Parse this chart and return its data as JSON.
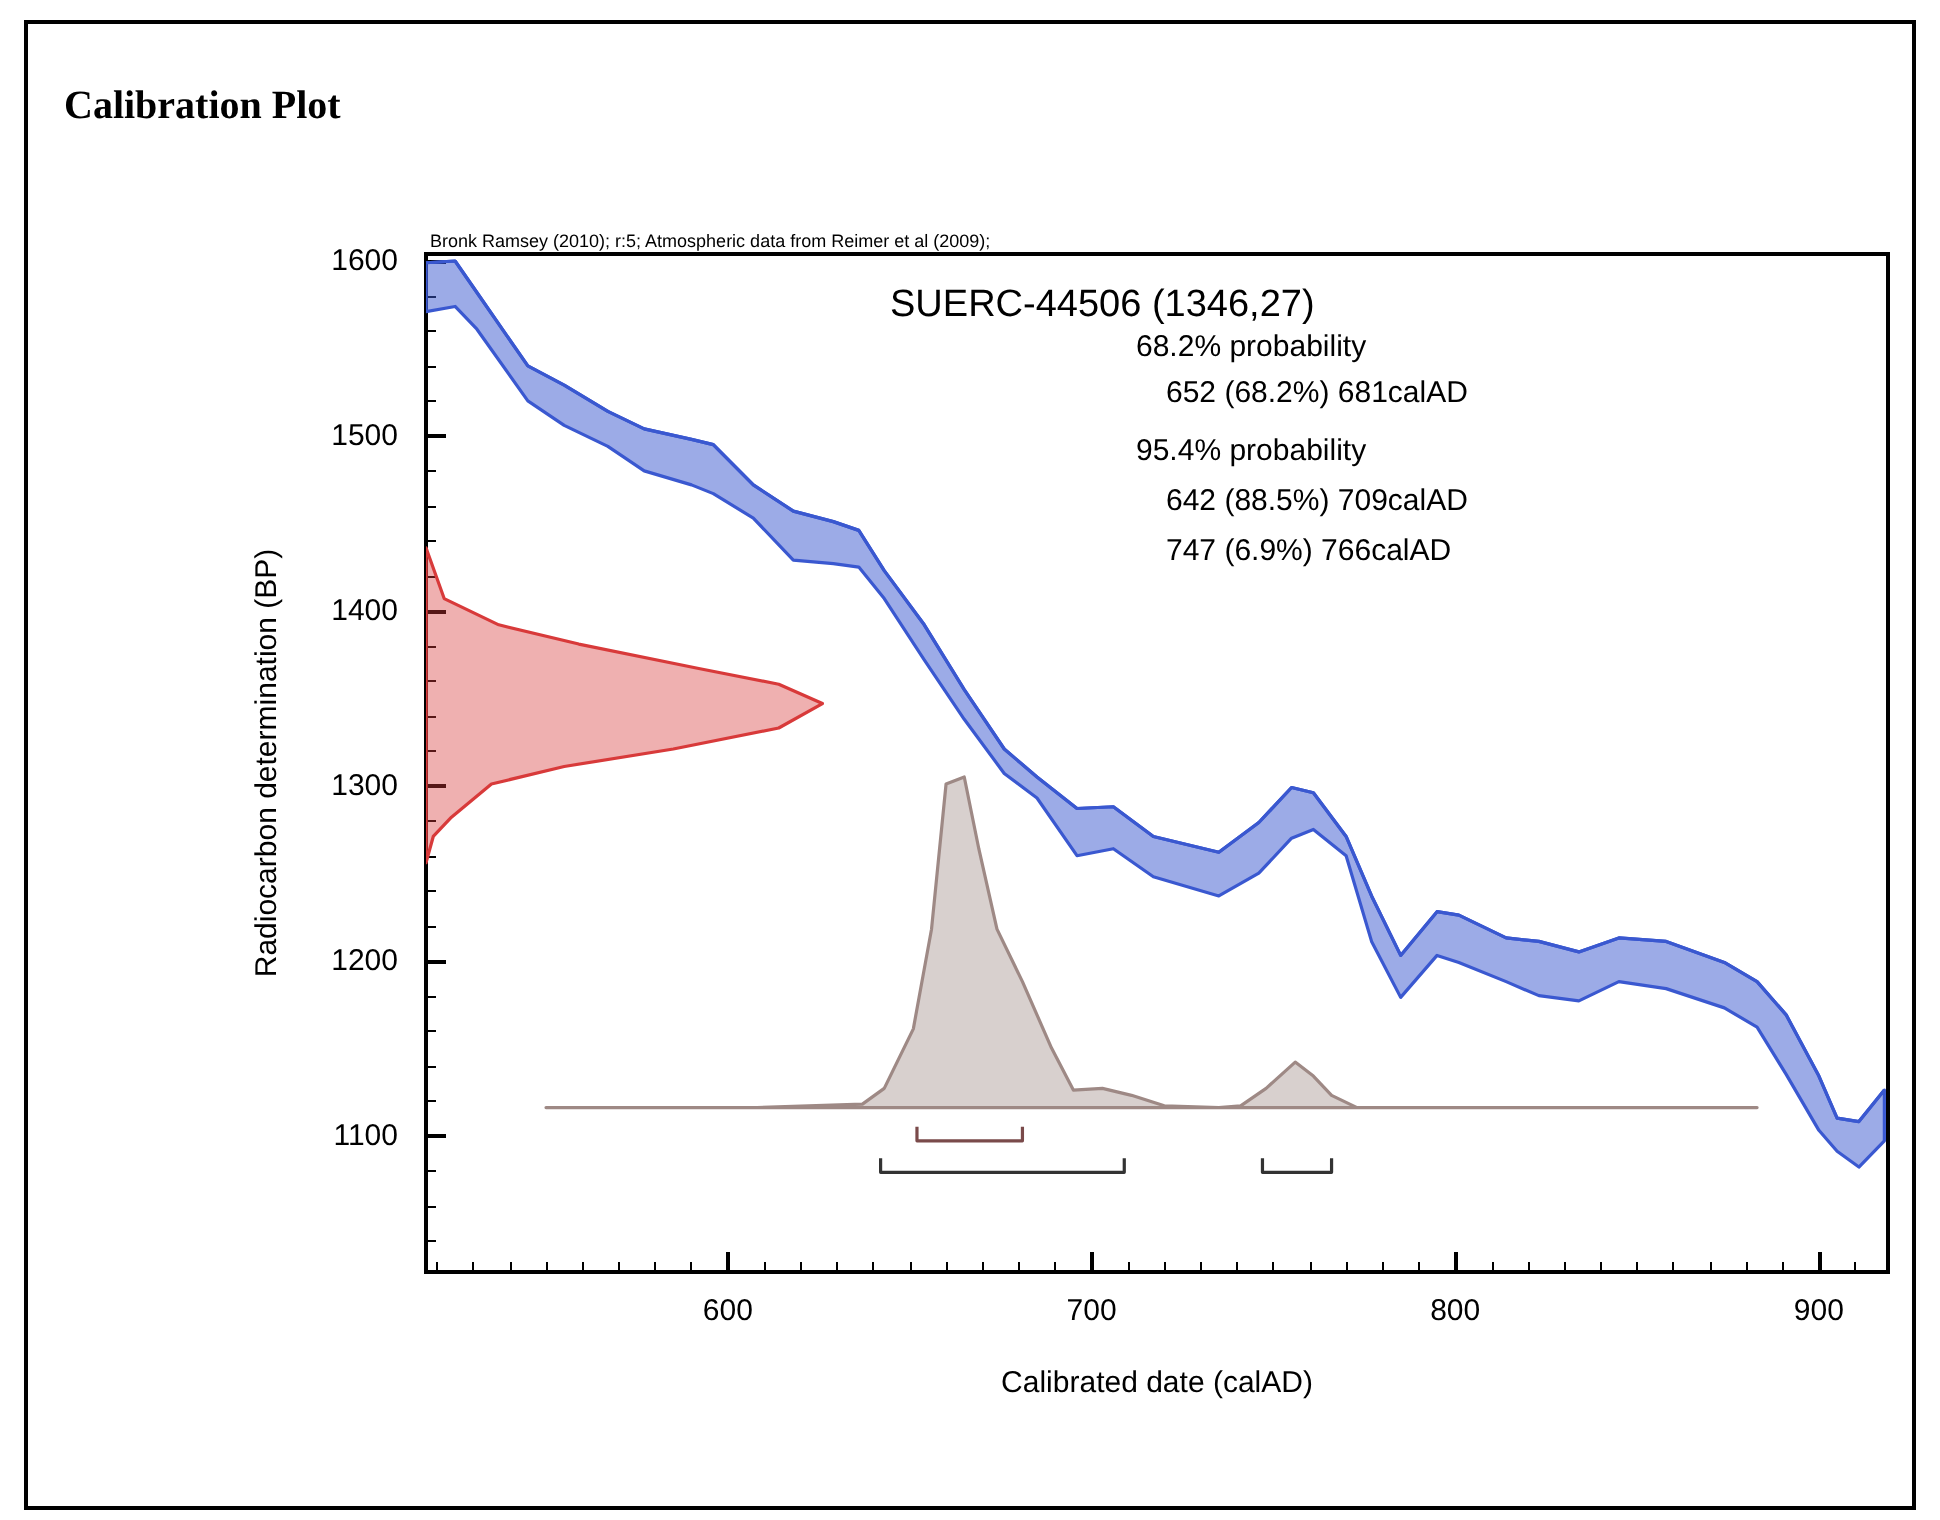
{
  "chart_data": {
    "type": "area",
    "title": "Calibration Plot",
    "subtitle": "Bronk Ramsey (2010); r:5; Atmospheric data from Reimer et al (2009);",
    "xlabel": "Calibrated date (calAD)",
    "ylabel": "Radiocarbon determination (BP)",
    "xlim": [
      517,
      919
    ],
    "ylim": [
      1022,
      1604
    ],
    "xticks": [
      600,
      700,
      800,
      900
    ],
    "yticks": [
      1100,
      1200,
      1300,
      1400,
      1500,
      1600
    ],
    "grid": false,
    "annotations": [
      "SUERC-44506 (1346,27)",
      "68.2% probability",
      "652 (68.2%) 681calAD",
      "95.4% probability",
      "642 (88.5%) 709calAD",
      "747 (6.9%) 766calAD"
    ],
    "series": [
      {
        "type": "line",
        "color": "#3a58d0",
        "x": [
          517,
          525,
          531,
          545,
          555,
          567,
          577,
          590,
          596,
          607,
          618,
          629,
          636,
          643,
          654,
          665,
          676,
          685,
          696,
          706,
          717,
          735,
          746,
          755,
          761,
          770,
          777,
          785,
          795,
          801,
          814,
          823,
          834,
          845,
          858,
          874,
          883,
          891,
          900,
          905,
          911,
          918
        ],
        "values": [
          1599,
          1600,
          1582,
          1540,
          1529,
          1514,
          1504,
          1498,
          1495,
          1472,
          1457,
          1451,
          1446,
          1423,
          1392,
          1355,
          1321,
          1305,
          1287,
          1288,
          1271,
          1262,
          1279,
          1299,
          1296,
          1271,
          1237,
          1203,
          1228,
          1226,
          1213,
          1211,
          1205,
          1213,
          1211,
          1199,
          1188,
          1169,
          1134,
          1110,
          1108,
          1126
        ],
        "upper": [
          1599,
          1600,
          1582,
          1540,
          1529,
          1514,
          1504,
          1498,
          1495,
          1472,
          1457,
          1451,
          1446,
          1423,
          1392,
          1355,
          1321,
          1305,
          1287,
          1288,
          1271,
          1262,
          1279,
          1299,
          1296,
          1271,
          1237,
          1203,
          1228,
          1226,
          1213,
          1211,
          1205,
          1213,
          1211,
          1199,
          1188,
          1169,
          1134,
          1110,
          1108,
          1126
        ],
        "lower": [
          1571,
          1574,
          1561,
          1520,
          1506,
          1494,
          1480,
          1472,
          1467,
          1453,
          1429,
          1427,
          1425,
          1407,
          1372,
          1338,
          1307,
          1293,
          1260,
          1264,
          1248,
          1237,
          1250,
          1270,
          1275,
          1260,
          1211,
          1179,
          1203,
          1199,
          1188,
          1180,
          1177,
          1188,
          1184,
          1173,
          1162,
          1135,
          1103,
          1091,
          1082,
          1097
        ]
      },
      {
        "color": "#d83a3a",
        "x": [
          517,
          522,
          537,
          559,
          592,
          614,
          626,
          614,
          585,
          555,
          535,
          524,
          519,
          517
        ],
        "values": [
          1436,
          1407,
          1392,
          1381,
          1367,
          1358,
          1347,
          1333,
          1321,
          1311,
          1301,
          1282,
          1271,
          1256
        ]
      },
      {
        "color": "#9e8985",
        "x": [
          550,
          608,
          637,
          643,
          651,
          656,
          660,
          665,
          669,
          674,
          681,
          689,
          695,
          703,
          711,
          720,
          735,
          741,
          748,
          756,
          761,
          766,
          773,
          883
        ],
        "values": [
          1116,
          1116,
          1118,
          1127,
          1161,
          1218,
          1301,
          1305,
          1264,
          1218,
          1188,
          1150,
          1126,
          1127,
          1123,
          1117,
          1116,
          1117,
          1127,
          1142,
          1134,
          1123,
          1116,
          1116
        ]
      },
      {
        "type": "line",
        "color": "#7a4a4a",
        "x": [
          652,
          652,
          681,
          681
        ],
        "values": [
          1105,
          1097,
          1097,
          1105
        ]
      },
      {
        "type": "line",
        "color": "#333333",
        "x": [
          642,
          642,
          709,
          709
        ],
        "values": [
          1087,
          1079,
          1079,
          1087
        ]
      },
      {
        "type": "line",
        "color": "#333333",
        "x": [
          747,
          747,
          766,
          766
        ],
        "values": [
          1087,
          1079,
          1079,
          1087
        ]
      }
    ]
  }
}
